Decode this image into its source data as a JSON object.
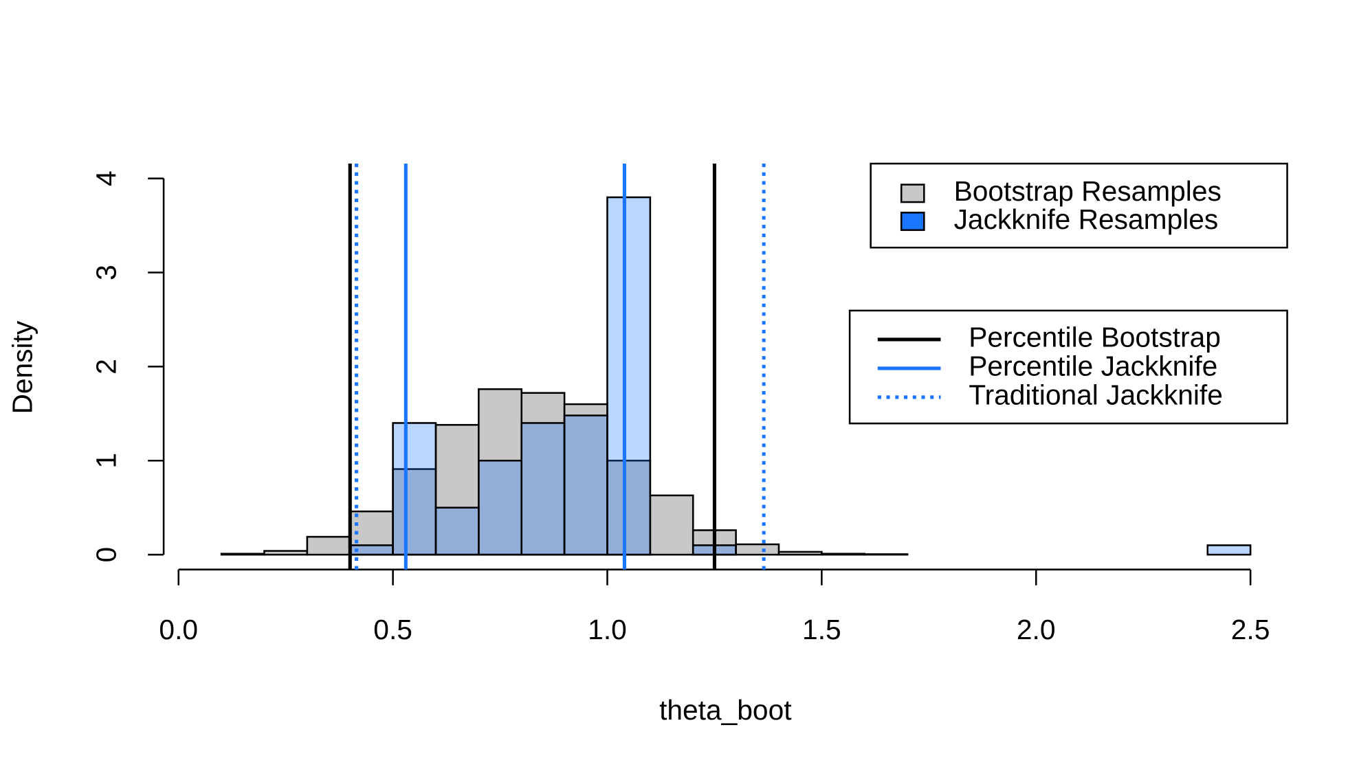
{
  "chart_data": {
    "type": "histogram",
    "xlabel": "theta_boot",
    "ylabel": "Density",
    "bins": [
      0.0,
      0.1,
      0.2,
      0.3,
      0.4,
      0.5,
      0.6,
      0.7,
      0.8,
      0.9,
      1.0,
      1.1,
      1.2,
      1.3,
      1.4,
      1.5,
      1.6,
      1.7,
      1.8,
      1.9,
      2.0,
      2.1,
      2.2,
      2.3,
      2.4,
      2.5
    ],
    "series": [
      {
        "name": "Bootstrap Resamples",
        "color": "#c8c8c8",
        "values": [
          0,
          0.01,
          0.04,
          0.19,
          0.46,
          0.91,
          1.38,
          1.76,
          1.72,
          1.6,
          1.0,
          0.63,
          0.26,
          0.11,
          0.03,
          0.01,
          0.005,
          0,
          0,
          0,
          0,
          0,
          0,
          0,
          0
        ]
      },
      {
        "name": "Jackknife Resamples",
        "color": "#1a75ff",
        "fill_opacity": 0.3,
        "values": [
          0,
          0,
          0,
          0,
          0.1,
          1.4,
          0.5,
          1.0,
          1.4,
          1.48,
          3.8,
          0,
          0.1,
          0,
          0,
          0,
          0,
          0,
          0,
          0,
          0,
          0,
          0,
          0,
          0.1
        ]
      }
    ],
    "vlines": [
      {
        "name": "Percentile Bootstrap",
        "color": "#000000",
        "style": "solid",
        "values": [
          0.4,
          1.25
        ]
      },
      {
        "name": "Percentile Jackknife",
        "color": "#1a75ff",
        "style": "solid",
        "values": [
          0.53,
          1.04
        ]
      },
      {
        "name": "Traditional Jackknife",
        "color": "#1a75ff",
        "style": "dotted",
        "values": [
          0.415,
          1.365
        ]
      }
    ],
    "xlim": [
      0,
      2.5
    ],
    "ylim": [
      0,
      4
    ],
    "xticks": [
      {
        "value": 0,
        "label": "0.0"
      },
      0.5,
      {
        "value": 1,
        "label": "1.0"
      },
      1.5,
      {
        "value": 2,
        "label": "2.0"
      },
      2.5
    ],
    "yticks": [
      0,
      1,
      2,
      3,
      4
    ]
  }
}
